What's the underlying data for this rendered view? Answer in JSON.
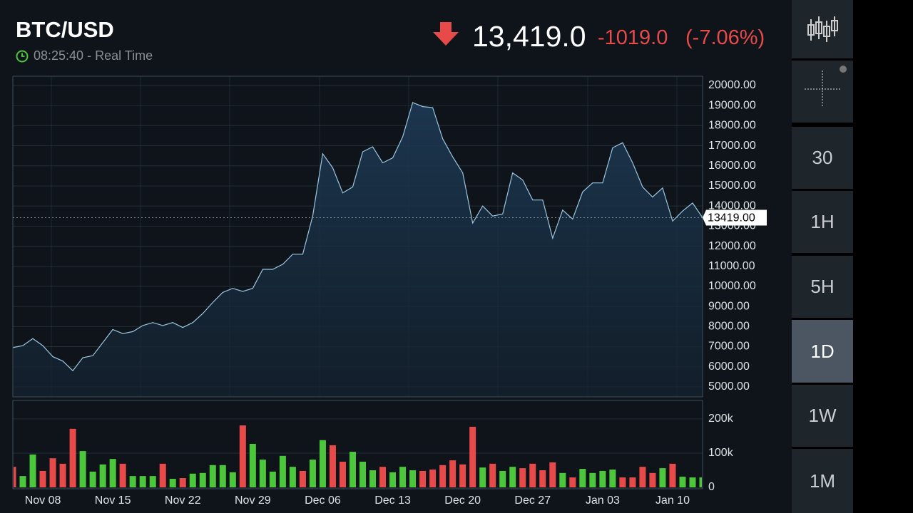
{
  "header": {
    "symbol": "BTC/USD",
    "time": "08:25:40",
    "mode": "- Real Time",
    "price": "13,419.0",
    "change": "-1019.0",
    "change_percent": "(-7.06%)"
  },
  "sidebar": {
    "intervals": [
      "30",
      "1H",
      "5H",
      "1D",
      "1W",
      "1M"
    ],
    "selected": 3
  },
  "chart_data": [
    {
      "type": "area",
      "color": "#9cc6e0",
      "values": [
        6950,
        7050,
        7400,
        7050,
        6500,
        6280,
        5800,
        6450,
        6550,
        7200,
        7850,
        7650,
        7750,
        8050,
        8200,
        8050,
        8200,
        7950,
        8200,
        8650,
        9200,
        9700,
        9900,
        9750,
        9900,
        10850,
        10850,
        11100,
        11600,
        11600,
        13500,
        16600,
        15900,
        14650,
        14950,
        16700,
        16950,
        16150,
        16400,
        17450,
        19150,
        18950,
        18900,
        17350,
        16450,
        15650,
        13150,
        14000,
        13500,
        13600,
        15650,
        15300,
        14300,
        14300,
        12400,
        13800,
        13350,
        14700,
        15150,
        15150,
        16900,
        17150,
        16150,
        14950,
        14450,
        14900,
        13250,
        13750,
        14150,
        13419
      ],
      "last_label": {
        "value": 13419,
        "label": "13419.00"
      },
      "ylim": [
        4500,
        20460
      ],
      "yticks": [
        {
          "value": 5000,
          "label": "5000.00"
        },
        {
          "value": 6000,
          "label": "6000.00"
        },
        {
          "value": 7000,
          "label": "7000.00"
        },
        {
          "value": 8000,
          "label": "8000.00"
        },
        {
          "value": 9000,
          "label": "9000.00"
        },
        {
          "value": 10000,
          "label": "10000.00"
        },
        {
          "value": 11000,
          "label": "11000.00"
        },
        {
          "value": 12000,
          "label": "12000.00"
        },
        {
          "value": 13000,
          "label": "13000.00"
        },
        {
          "value": 14000,
          "label": "14000.00"
        },
        {
          "value": 15000,
          "label": "15000.00"
        },
        {
          "value": 16000,
          "label": "16000.00"
        },
        {
          "value": 17000,
          "label": "17000.00"
        },
        {
          "value": 18000,
          "label": "18000.00"
        },
        {
          "value": 19000,
          "label": "19000.00"
        },
        {
          "value": 20000,
          "label": "20000.00"
        }
      ],
      "grid": true
    },
    {
      "type": "bar",
      "categories": [
        null,
        null,
        null,
        "Nov 08",
        null,
        null,
        null,
        null,
        null,
        null,
        "Nov 15",
        null,
        null,
        null,
        null,
        null,
        null,
        "Nov 22",
        null,
        null,
        null,
        null,
        null,
        null,
        "Nov 29",
        null,
        null,
        null,
        null,
        null,
        null,
        "Dec 06",
        null,
        null,
        null,
        null,
        null,
        null,
        "Dec 13",
        null,
        null,
        null,
        null,
        null,
        null,
        "Dec 20",
        null,
        null,
        null,
        null,
        null,
        null,
        "Dec 27",
        null,
        null,
        null,
        null,
        null,
        null,
        "Jan 03",
        null,
        null,
        null,
        null,
        null,
        null,
        "Jan 10",
        null,
        null,
        null
      ],
      "values": [
        60000,
        33000,
        96000,
        48000,
        85000,
        69000,
        171000,
        106000,
        46000,
        67000,
        83000,
        69000,
        33000,
        33000,
        33000,
        69000,
        25000,
        27000,
        40000,
        42000,
        65000,
        65000,
        44000,
        181000,
        127000,
        81000,
        46000,
        92000,
        60000,
        48000,
        81000,
        138000,
        123000,
        75000,
        104000,
        75000,
        50000,
        60000,
        44000,
        60000,
        50000,
        48000,
        52000,
        65000,
        79000,
        67000,
        177000,
        58000,
        69000,
        48000,
        60000,
        56000,
        69000,
        50000,
        73000,
        42000,
        29000,
        54000,
        42000,
        48000,
        52000,
        29000,
        29000,
        60000,
        42000,
        56000,
        69000,
        31000,
        29000,
        29000
      ],
      "colors": [
        "#e84a4a",
        "#4cc63a",
        "#4cc63a",
        "#e84a4a",
        "#e84a4a",
        "#e84a4a",
        "#e84a4a",
        "#4cc63a",
        "#4cc63a",
        "#4cc63a",
        "#4cc63a",
        "#e84a4a",
        "#4cc63a",
        "#4cc63a",
        "#4cc63a",
        "#e84a4a",
        "#4cc63a",
        "#e84a4a",
        "#4cc63a",
        "#4cc63a",
        "#4cc63a",
        "#4cc63a",
        "#4cc63a",
        "#e84a4a",
        "#4cc63a",
        "#4cc63a",
        "#4cc63a",
        "#4cc63a",
        "#4cc63a",
        "#e84a4a",
        "#4cc63a",
        "#4cc63a",
        "#e84a4a",
        "#e84a4a",
        "#4cc63a",
        "#4cc63a",
        "#4cc63a",
        "#e84a4a",
        "#4cc63a",
        "#4cc63a",
        "#4cc63a",
        "#e84a4a",
        "#e84a4a",
        "#e84a4a",
        "#e84a4a",
        "#e84a4a",
        "#e84a4a",
        "#4cc63a",
        "#e84a4a",
        "#4cc63a",
        "#4cc63a",
        "#e84a4a",
        "#e84a4a",
        "#e84a4a",
        "#e84a4a",
        "#4cc63a",
        "#e84a4a",
        "#4cc63a",
        "#4cc63a",
        "#4cc63a",
        "#4cc63a",
        "#e84a4a",
        "#e84a4a",
        "#e84a4a",
        "#e84a4a",
        "#4cc63a",
        "#e84a4a",
        "#4cc63a",
        "#4cc63a",
        "#4cc63a"
      ],
      "ylim": [
        0,
        254000
      ],
      "yticks": [
        0,
        {
          "value": 100000,
          "label": "100k"
        },
        {
          "value": 200000,
          "label": "200k"
        }
      ],
      "grid": true
    }
  ]
}
